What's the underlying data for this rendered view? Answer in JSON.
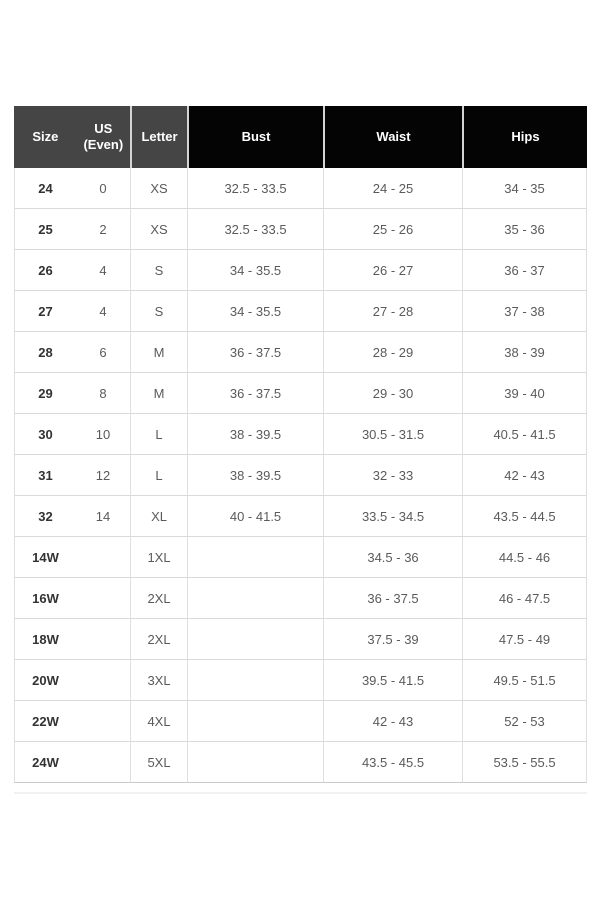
{
  "colors": {
    "header_gray": "#454545",
    "header_black": "#040404",
    "header_text": "#ffffff",
    "body_text": "#5a5a5a",
    "size_column_text": "#333333",
    "grid_border": "#dfdfdf"
  },
  "table": {
    "columns": [
      {
        "key": "size",
        "label": "Size"
      },
      {
        "key": "us",
        "label": "US (Even)"
      },
      {
        "key": "letter",
        "label": "Letter"
      },
      {
        "key": "bust",
        "label": "Bust"
      },
      {
        "key": "waist",
        "label": "Waist"
      },
      {
        "key": "hips",
        "label": "Hips"
      }
    ],
    "rows": [
      {
        "size": "24",
        "us": "0",
        "letter": "XS",
        "bust": "32.5 - 33.5",
        "waist": "24 - 25",
        "hips": "34 - 35"
      },
      {
        "size": "25",
        "us": "2",
        "letter": "XS",
        "bust": "32.5 - 33.5",
        "waist": "25 - 26",
        "hips": "35 - 36"
      },
      {
        "size": "26",
        "us": "4",
        "letter": "S",
        "bust": "34 - 35.5",
        "waist": "26 - 27",
        "hips": "36 - 37"
      },
      {
        "size": "27",
        "us": "4",
        "letter": "S",
        "bust": "34 - 35.5",
        "waist": "27 - 28",
        "hips": "37 - 38"
      },
      {
        "size": "28",
        "us": "6",
        "letter": "M",
        "bust": "36 - 37.5",
        "waist": "28 - 29",
        "hips": "38 - 39"
      },
      {
        "size": "29",
        "us": "8",
        "letter": "M",
        "bust": "36 - 37.5",
        "waist": "29 - 30",
        "hips": "39 - 40"
      },
      {
        "size": "30",
        "us": "10",
        "letter": "L",
        "bust": "38 - 39.5",
        "waist": "30.5 - 31.5",
        "hips": "40.5 - 41.5"
      },
      {
        "size": "31",
        "us": "12",
        "letter": "L",
        "bust": "38 - 39.5",
        "waist": "32 - 33",
        "hips": "42 - 43"
      },
      {
        "size": "32",
        "us": "14",
        "letter": "XL",
        "bust": "40 - 41.5",
        "waist": "33.5 - 34.5",
        "hips": "43.5 - 44.5"
      },
      {
        "size": "14W",
        "us": "",
        "letter": "1XL",
        "bust": "",
        "waist": "34.5 - 36",
        "hips": "44.5 - 46"
      },
      {
        "size": "16W",
        "us": "",
        "letter": "2XL",
        "bust": "",
        "waist": "36 - 37.5",
        "hips": "46 - 47.5"
      },
      {
        "size": "18W",
        "us": "",
        "letter": "2XL",
        "bust": "",
        "waist": "37.5 - 39",
        "hips": "47.5 - 49"
      },
      {
        "size": "20W",
        "us": "",
        "letter": "3XL",
        "bust": "",
        "waist": "39.5 - 41.5",
        "hips": "49.5 - 51.5"
      },
      {
        "size": "22W",
        "us": "",
        "letter": "4XL",
        "bust": "",
        "waist": "42 - 43",
        "hips": "52 - 53"
      },
      {
        "size": "24W",
        "us": "",
        "letter": "5XL",
        "bust": "",
        "waist": "43.5 - 45.5",
        "hips": "53.5 - 55.5"
      }
    ]
  }
}
